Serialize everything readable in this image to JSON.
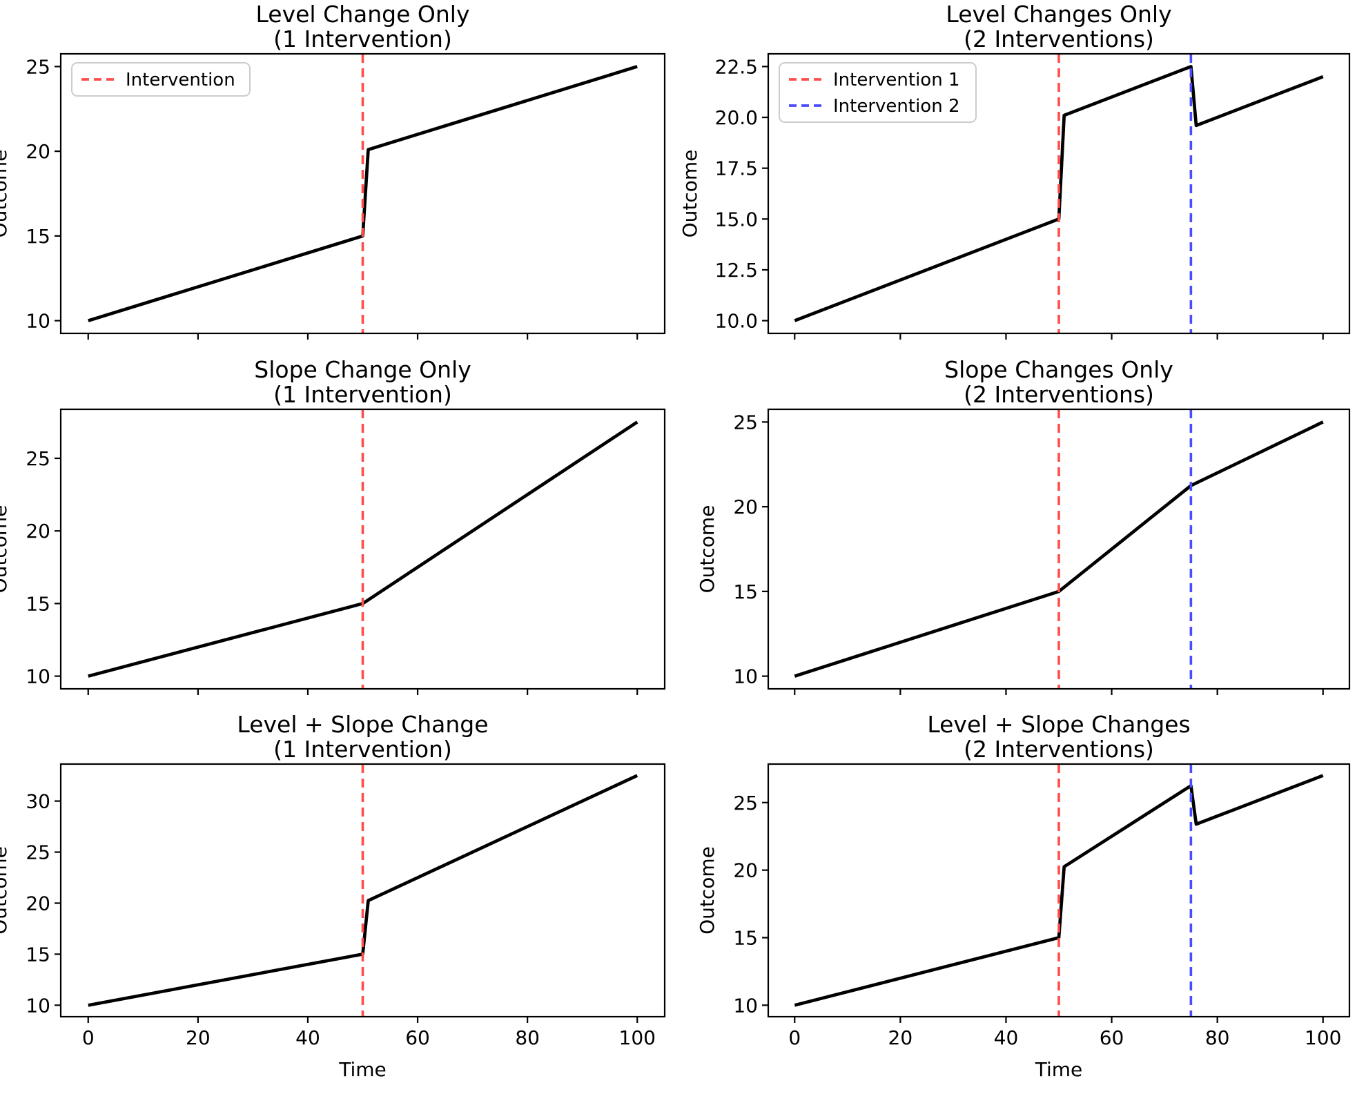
{
  "figure": {
    "background_color": "#ffffff",
    "series_line_color": "#000000",
    "axis_color": "#000000",
    "intervention1_color": "#ff4c4c",
    "intervention2_color": "#4c4cff",
    "shared_xlabel": "Time",
    "shared_ylabel": "Outcome"
  },
  "chart_data": [
    {
      "type": "line",
      "title_line1": "Level Change Only",
      "title_line2": "(1 Intervention)",
      "xlabel": "",
      "ylabel": "Outcome",
      "xlim": [
        -5,
        105
      ],
      "ylim": [
        9.25,
        25.75
      ],
      "grid": false,
      "x_ticks": [
        0,
        20,
        40,
        60,
        80,
        100
      ],
      "x_tick_labels": [],
      "y_ticks": [
        10,
        15,
        20,
        25
      ],
      "y_tick_labels": [
        "10",
        "15",
        "20",
        "25"
      ],
      "series": [
        {
          "name": "outcome",
          "color": "#000000",
          "points": [
            [
              0,
              10
            ],
            [
              50,
              15
            ],
            [
              51,
              20.1
            ],
            [
              100,
              25
            ]
          ]
        }
      ],
      "vlines": [
        {
          "x": 50,
          "color": "#ff4c4c",
          "style": "dashed"
        }
      ],
      "legend": {
        "position": "upper-left",
        "items": [
          {
            "label": "Intervention",
            "color": "#ff4c4c",
            "style": "dashed"
          }
        ]
      }
    },
    {
      "type": "line",
      "title_line1": "Level Changes Only",
      "title_line2": "(2 Interventions)",
      "xlabel": "",
      "ylabel": "Outcome",
      "xlim": [
        -5,
        105
      ],
      "ylim": [
        9.375,
        23.125
      ],
      "grid": false,
      "x_ticks": [
        0,
        20,
        40,
        60,
        80,
        100
      ],
      "x_tick_labels": [],
      "y_ticks": [
        10,
        12.5,
        15,
        17.5,
        20,
        22.5
      ],
      "y_tick_labels": [
        "10.0",
        "12.5",
        "15.0",
        "17.5",
        "20.0",
        "22.5"
      ],
      "series": [
        {
          "name": "outcome",
          "color": "#000000",
          "points": [
            [
              0,
              10
            ],
            [
              50,
              15
            ],
            [
              51,
              20.1
            ],
            [
              75,
              22.5
            ],
            [
              76,
              19.6
            ],
            [
              100,
              22
            ]
          ]
        }
      ],
      "vlines": [
        {
          "x": 50,
          "color": "#ff4c4c",
          "style": "dashed"
        },
        {
          "x": 75,
          "color": "#4c4cff",
          "style": "dashed"
        }
      ],
      "legend": {
        "position": "upper-left",
        "items": [
          {
            "label": "Intervention 1",
            "color": "#ff4c4c",
            "style": "dashed"
          },
          {
            "label": "Intervention 2",
            "color": "#4c4cff",
            "style": "dashed"
          }
        ]
      }
    },
    {
      "type": "line",
      "title_line1": "Slope Change Only",
      "title_line2": "(1 Intervention)",
      "xlabel": "",
      "ylabel": "Outcome",
      "xlim": [
        -5,
        105
      ],
      "ylim": [
        9.125,
        28.375
      ],
      "grid": false,
      "x_ticks": [
        0,
        20,
        40,
        60,
        80,
        100
      ],
      "x_tick_labels": [],
      "y_ticks": [
        10,
        15,
        20,
        25
      ],
      "y_tick_labels": [
        "10",
        "15",
        "20",
        "25"
      ],
      "series": [
        {
          "name": "outcome",
          "color": "#000000",
          "points": [
            [
              0,
              10
            ],
            [
              50,
              15
            ],
            [
              100,
              27.5
            ]
          ]
        }
      ],
      "vlines": [
        {
          "x": 50,
          "color": "#ff4c4c",
          "style": "dashed"
        }
      ],
      "legend": null
    },
    {
      "type": "line",
      "title_line1": "Slope Changes Only",
      "title_line2": "(2 Interventions)",
      "xlabel": "",
      "ylabel": "Outcome",
      "xlim": [
        -5,
        105
      ],
      "ylim": [
        9.25,
        25.75
      ],
      "grid": false,
      "x_ticks": [
        0,
        20,
        40,
        60,
        80,
        100
      ],
      "x_tick_labels": [],
      "y_ticks": [
        10,
        15,
        20,
        25
      ],
      "y_tick_labels": [
        "10",
        "15",
        "20",
        "25"
      ],
      "series": [
        {
          "name": "outcome",
          "color": "#000000",
          "points": [
            [
              0,
              10
            ],
            [
              50,
              15
            ],
            [
              75,
              21.25
            ],
            [
              100,
              25
            ]
          ]
        }
      ],
      "vlines": [
        {
          "x": 50,
          "color": "#ff4c4c",
          "style": "dashed"
        },
        {
          "x": 75,
          "color": "#4c4cff",
          "style": "dashed"
        }
      ],
      "legend": null
    },
    {
      "type": "line",
      "title_line1": "Level + Slope Change",
      "title_line2": "(1 Intervention)",
      "xlabel": "Time",
      "ylabel": "Outcome",
      "xlim": [
        -5,
        105
      ],
      "ylim": [
        8.875,
        33.625
      ],
      "grid": false,
      "x_ticks": [
        0,
        20,
        40,
        60,
        80,
        100
      ],
      "x_tick_labels": [
        "0",
        "20",
        "40",
        "60",
        "80",
        "100"
      ],
      "y_ticks": [
        10,
        15,
        20,
        25,
        30
      ],
      "y_tick_labels": [
        "10",
        "15",
        "20",
        "25",
        "30"
      ],
      "series": [
        {
          "name": "outcome",
          "color": "#000000",
          "points": [
            [
              0,
              10
            ],
            [
              50,
              15
            ],
            [
              51,
              20.25
            ],
            [
              100,
              32.5
            ]
          ]
        }
      ],
      "vlines": [
        {
          "x": 50,
          "color": "#ff4c4c",
          "style": "dashed"
        }
      ],
      "legend": null
    },
    {
      "type": "line",
      "title_line1": "Level + Slope Changes",
      "title_line2": "(2 Interventions)",
      "xlabel": "Time",
      "ylabel": "Outcome",
      "xlim": [
        -5,
        105
      ],
      "ylim": [
        9.15,
        27.85
      ],
      "grid": false,
      "x_ticks": [
        0,
        20,
        40,
        60,
        80,
        100
      ],
      "x_tick_labels": [
        "0",
        "20",
        "40",
        "60",
        "80",
        "100"
      ],
      "y_ticks": [
        10,
        15,
        20,
        25
      ],
      "y_tick_labels": [
        "10",
        "15",
        "20",
        "25"
      ],
      "series": [
        {
          "name": "outcome",
          "color": "#000000",
          "points": [
            [
              0,
              10
            ],
            [
              50,
              15
            ],
            [
              51,
              20.25
            ],
            [
              75,
              26.25
            ],
            [
              76,
              23.4
            ],
            [
              100,
              27
            ]
          ]
        }
      ],
      "vlines": [
        {
          "x": 50,
          "color": "#ff4c4c",
          "style": "dashed"
        },
        {
          "x": 75,
          "color": "#4c4cff",
          "style": "dashed"
        }
      ],
      "legend": null
    }
  ]
}
